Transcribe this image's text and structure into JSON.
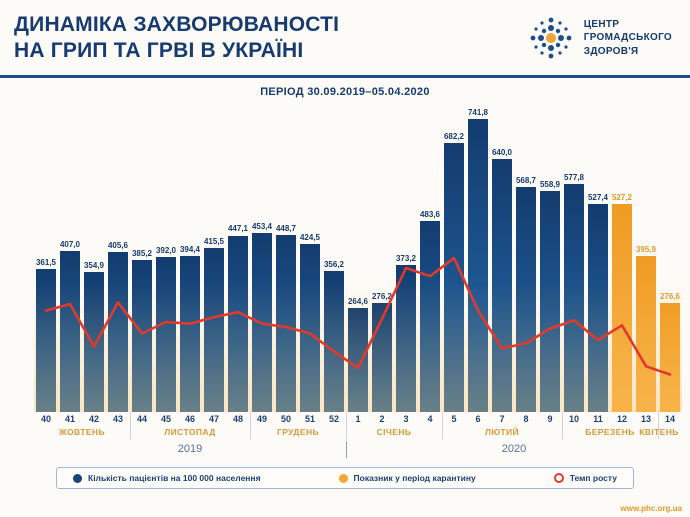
{
  "header": {
    "title_line1": "ДИНАМІКА ЗАХВОРЮВАНОСТІ",
    "title_line2": "НА ГРИП ТА ГРВІ В УКРАЇНІ",
    "logo_lines": [
      "ЦЕНТР",
      "ГРОМАДСЬКОГО",
      "ЗДОРОВ'Я"
    ]
  },
  "period_label": "ПЕРІОД 30.09.2019–05.04.2020",
  "chart_data": {
    "type": "bar",
    "title": "ДИНАМІКА ЗАХВОРЮВАНОСТІ НА ГРИП ТА ГРВІ В УКРАЇНІ",
    "subtitle": "ПЕРІОД 30.09.2019–05.04.2020",
    "x_weeks": [
      "40",
      "41",
      "42",
      "43",
      "44",
      "45",
      "46",
      "47",
      "48",
      "49",
      "50",
      "51",
      "52",
      "1",
      "2",
      "3",
      "4",
      "5",
      "6",
      "7",
      "8",
      "9",
      "10",
      "11",
      "12",
      "13",
      "14"
    ],
    "series": [
      {
        "name": "Кількість пацієнтів на 100 000 населення",
        "type": "bar",
        "values": [
          361.5,
          407.0,
          354.9,
          405.6,
          385.2,
          392.0,
          394.4,
          415.5,
          447.1,
          453.4,
          448.7,
          424.5,
          356.2,
          264.6,
          276.2,
          373.2,
          483.6,
          682.2,
          741.8,
          640.0,
          568.7,
          558.9,
          577.8,
          527.4,
          527.2,
          395.9,
          276.6
        ]
      },
      {
        "name": "Темп росту",
        "type": "line",
        "values": [
          1.09,
          1.13,
          0.87,
          1.14,
          0.95,
          1.02,
          1.01,
          1.05,
          1.08,
          1.01,
          0.99,
          0.95,
          0.84,
          0.74,
          1.04,
          1.35,
          1.3,
          1.41,
          1.09,
          0.86,
          0.89,
          0.98,
          1.03,
          0.91,
          1.0,
          0.75,
          0.7
        ]
      }
    ],
    "quarantine": {
      "label": "Показник у період карантину",
      "indices": [
        24,
        25,
        26
      ]
    },
    "months": [
      {
        "label": "ЖОВТЕНЬ",
        "start": 0,
        "end": 3
      },
      {
        "label": "ЛИСТОПАД",
        "start": 4,
        "end": 8
      },
      {
        "label": "ГРУДЕНЬ",
        "start": 9,
        "end": 12
      },
      {
        "label": "СІЧЕНЬ",
        "start": 13,
        "end": 16
      },
      {
        "label": "ЛЮТИЙ",
        "start": 17,
        "end": 21
      },
      {
        "label": "БЕРЕЗЕНЬ",
        "start": 22,
        "end": 25
      },
      {
        "label": "КВІТЕНЬ",
        "start": 26,
        "end": 26
      }
    ],
    "years": [
      {
        "label": "2019",
        "start": 0,
        "end": 12
      },
      {
        "label": "2020",
        "start": 13,
        "end": 26
      }
    ],
    "ylim": [
      0,
      780
    ],
    "grid": false,
    "legend_position": "bottom",
    "colors": {
      "bar": "#15457d",
      "quarantine_bar": "#f5a733",
      "growth_line": "#e13a2c",
      "accent_navy": "#173a70",
      "accent_orange": "#e8972c"
    }
  },
  "legend": {
    "items": [
      {
        "label": "Кількість пацієнтів на 100 000 населення",
        "marker": "dot",
        "color": "#15457d"
      },
      {
        "label": "Показник у період карантину",
        "marker": "dot",
        "color": "#f5a733"
      },
      {
        "label": "Темп росту",
        "marker": "ring",
        "color": "#e13a2c"
      }
    ]
  },
  "footer": {
    "website": "www.phc.org.ua"
  }
}
